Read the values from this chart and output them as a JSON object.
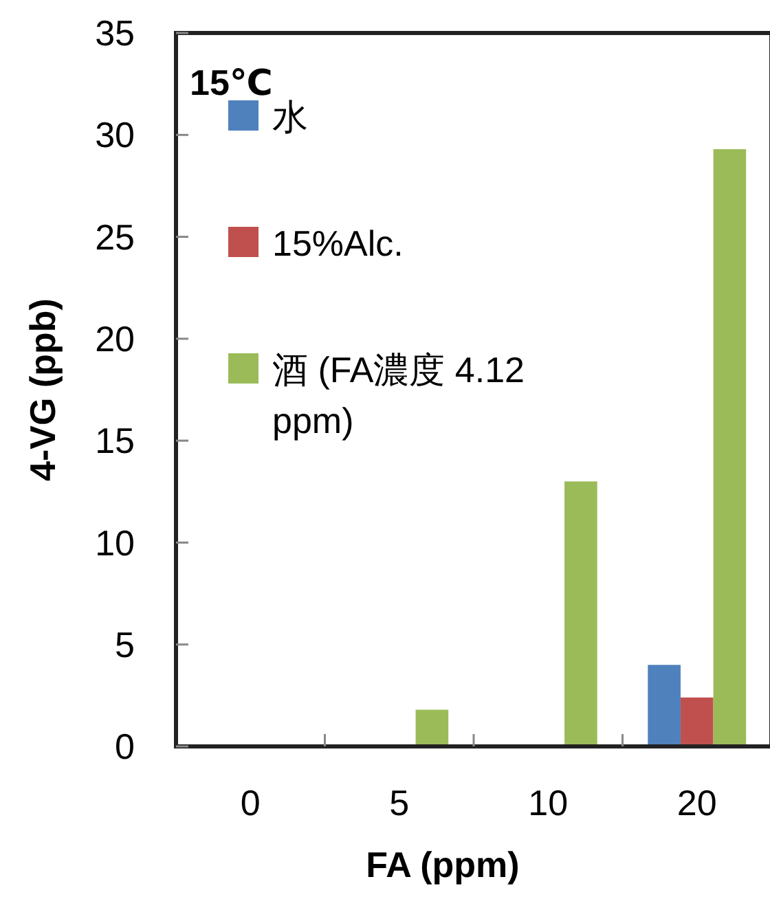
{
  "chart_data": {
    "type": "bar",
    "xlabel": "FA (ppm)",
    "ylabel": "4-VG (ppb)",
    "legend_title": "15℃",
    "categories": [
      "0",
      "5",
      "10",
      "20"
    ],
    "series": [
      {
        "name": "水",
        "color": "#4f81bd",
        "values": [
          0,
          0,
          0,
          4.0
        ]
      },
      {
        "name": "15%Alc.",
        "color": "#c0504d",
        "values": [
          0,
          0,
          0,
          2.4
        ]
      },
      {
        "name": "酒 (FA濃度 4.12 ppm)",
        "color": "#9bbb59",
        "values": [
          0,
          1.8,
          13.0,
          29.3
        ]
      }
    ],
    "ylim": [
      0,
      35
    ],
    "yticks": [
      0,
      5,
      10,
      15,
      20,
      25,
      30,
      35
    ],
    "grid": false,
    "legend": "top left"
  }
}
